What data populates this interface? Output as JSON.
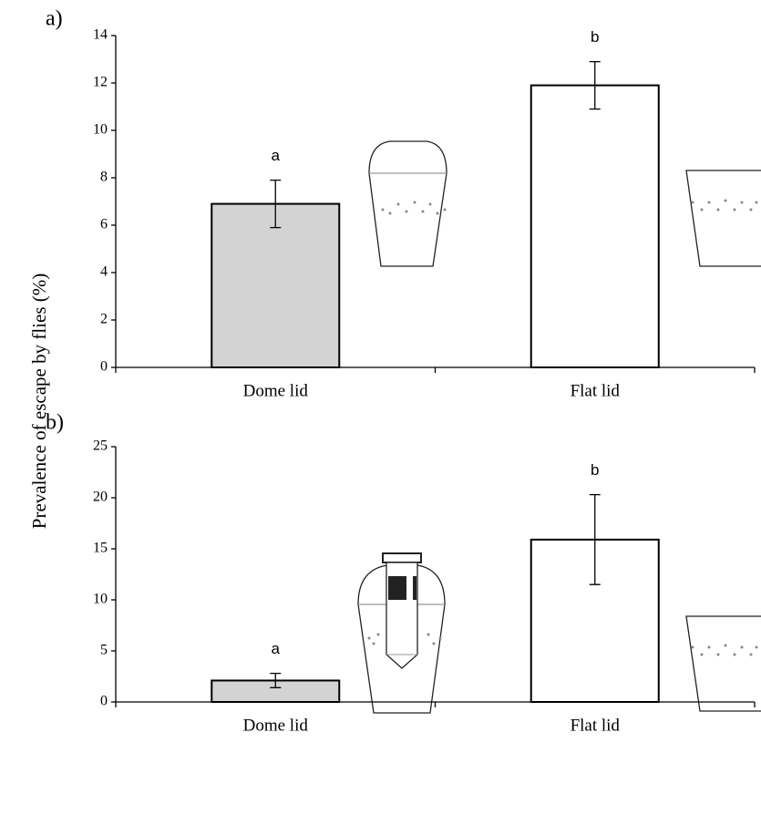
{
  "y_label": "Prevalence of escape by flies (%)",
  "chart_data": [
    {
      "type": "bar",
      "panel": "a)",
      "categories": [
        "Dome lid",
        "Flat lid"
      ],
      "values": [
        6.9,
        11.9
      ],
      "errors": [
        1.0,
        1.0
      ],
      "annotations": [
        "a",
        "b"
      ],
      "colors": [
        "#d3d3d3",
        "#ffffff"
      ],
      "ylim": [
        0,
        14
      ],
      "yticks": [
        0,
        2,
        4,
        6,
        8,
        10,
        12,
        14
      ]
    },
    {
      "type": "bar",
      "panel": "b)",
      "categories": [
        "Dome lid",
        "Flat lid"
      ],
      "values": [
        2.1,
        15.9
      ],
      "errors": [
        0.7,
        4.4
      ],
      "annotations": [
        "a",
        "b"
      ],
      "colors": [
        "#d3d3d3",
        "#ffffff"
      ],
      "ylim": [
        0,
        25
      ],
      "yticks": [
        0,
        5,
        10,
        15,
        20,
        25
      ]
    }
  ]
}
